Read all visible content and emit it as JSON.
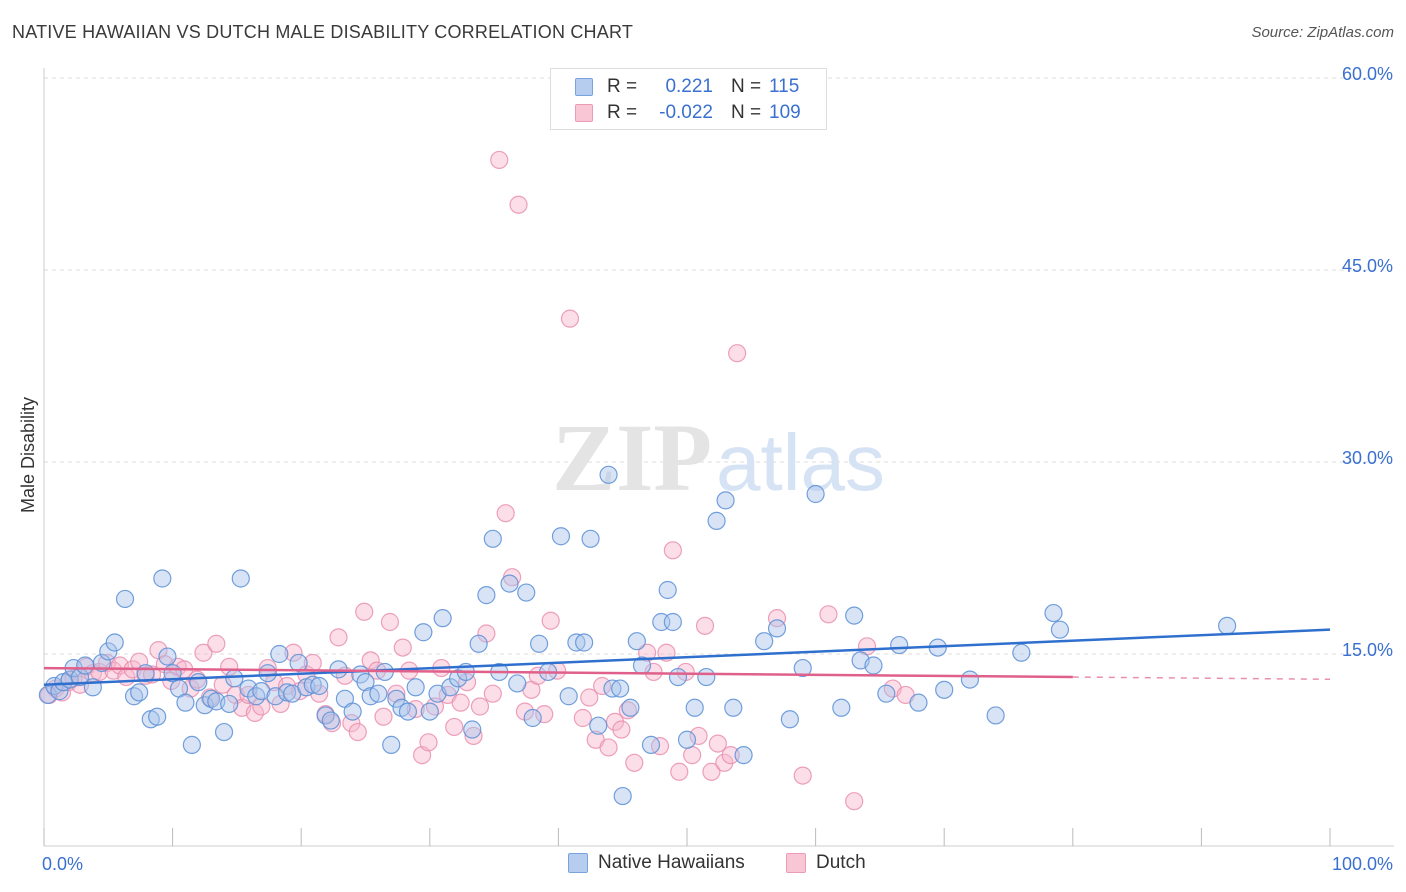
{
  "header": {
    "title": "NATIVE HAWAIIAN VS DUTCH MALE DISABILITY CORRELATION CHART",
    "source": "Source: ZipAtlas.com"
  },
  "legend": {
    "rows": [
      {
        "r_label": "R =",
        "r_value": "0.221",
        "n_label": "N =",
        "n_value": "115"
      },
      {
        "r_label": "R =",
        "r_value": "-0.022",
        "n_label": "N =",
        "n_value": "109"
      }
    ]
  },
  "bottom_legend": {
    "series1": "Native Hawaiians",
    "series2": "Dutch"
  },
  "watermark": {
    "part1": "ZIP",
    "part2": "atlas"
  },
  "colors": {
    "blue_fill": "#a8c4ec",
    "blue_stroke": "#5b8fd6",
    "blue_line": "#2f6fce",
    "pink_fill": "#f6b6cb",
    "pink_stroke": "#e98aac",
    "pink_line": "#e0608c",
    "axis_text": "#3a70d0"
  },
  "chart_data": {
    "type": "scatter",
    "title": "NATIVE HAWAIIAN VS DUTCH MALE DISABILITY CORRELATION CHART",
    "xlabel": "",
    "ylabel": "Male Disability",
    "xlim": [
      0,
      100
    ],
    "ylim": [
      0,
      60
    ],
    "x_tick_labels": [
      "0.0%",
      "100.0%"
    ],
    "y_ticks": [
      15,
      30,
      45,
      60
    ],
    "y_tick_labels": [
      "15.0%",
      "30.0%",
      "45.0%",
      "60.0%"
    ],
    "grid": true,
    "legend_position": "top-center",
    "series": [
      {
        "name": "Native Hawaiians",
        "r": 0.221,
        "n": 115,
        "trend": {
          "x": [
            0,
            100
          ],
          "y": [
            12.6,
            16.9
          ]
        },
        "points": [
          [
            0.3,
            11.8
          ],
          [
            0.8,
            12.5
          ],
          [
            1.2,
            12.1
          ],
          [
            1.5,
            12.8
          ],
          [
            2.0,
            13.0
          ],
          [
            2.3,
            13.9
          ],
          [
            2.8,
            13.2
          ],
          [
            3.2,
            14.1
          ],
          [
            3.8,
            12.4
          ],
          [
            4.5,
            14.3
          ],
          [
            5.0,
            15.2
          ],
          [
            5.5,
            15.9
          ],
          [
            6.3,
            19.3
          ],
          [
            7.0,
            11.7
          ],
          [
            7.4,
            12.0
          ],
          [
            7.9,
            13.5
          ],
          [
            8.3,
            9.9
          ],
          [
            8.8,
            10.1
          ],
          [
            9.2,
            20.9
          ],
          [
            9.6,
            14.8
          ],
          [
            10.0,
            13.5
          ],
          [
            10.5,
            12.3
          ],
          [
            11.0,
            11.2
          ],
          [
            11.5,
            7.9
          ],
          [
            12.0,
            12.8
          ],
          [
            12.5,
            11.0
          ],
          [
            13.0,
            11.5
          ],
          [
            13.4,
            11.3
          ],
          [
            14.0,
            8.9
          ],
          [
            14.4,
            11.1
          ],
          [
            14.8,
            13.1
          ],
          [
            15.3,
            20.9
          ],
          [
            15.9,
            12.3
          ],
          [
            16.5,
            11.7
          ],
          [
            16.9,
            12.1
          ],
          [
            17.4,
            13.5
          ],
          [
            18.0,
            11.7
          ],
          [
            18.3,
            15.0
          ],
          [
            18.9,
            12.0
          ],
          [
            19.3,
            11.9
          ],
          [
            19.8,
            14.3
          ],
          [
            20.4,
            12.4
          ],
          [
            20.9,
            12.6
          ],
          [
            21.4,
            12.5
          ],
          [
            21.9,
            10.2
          ],
          [
            22.3,
            9.8
          ],
          [
            22.9,
            13.8
          ],
          [
            23.4,
            11.5
          ],
          [
            24.0,
            10.5
          ],
          [
            24.6,
            13.4
          ],
          [
            25.0,
            12.8
          ],
          [
            25.4,
            11.7
          ],
          [
            26.0,
            11.9
          ],
          [
            26.5,
            13.6
          ],
          [
            27.0,
            7.9
          ],
          [
            27.4,
            11.5
          ],
          [
            27.8,
            10.8
          ],
          [
            28.3,
            10.5
          ],
          [
            28.9,
            12.4
          ],
          [
            29.5,
            16.7
          ],
          [
            30.0,
            10.5
          ],
          [
            30.6,
            11.9
          ],
          [
            31.0,
            17.8
          ],
          [
            31.6,
            12.4
          ],
          [
            32.2,
            13.1
          ],
          [
            32.8,
            13.6
          ],
          [
            33.3,
            9.1
          ],
          [
            33.8,
            15.8
          ],
          [
            34.4,
            19.6
          ],
          [
            34.9,
            24.0
          ],
          [
            35.4,
            13.6
          ],
          [
            36.2,
            20.5
          ],
          [
            36.8,
            12.7
          ],
          [
            37.5,
            19.8
          ],
          [
            38.0,
            10.0
          ],
          [
            38.5,
            15.8
          ],
          [
            39.2,
            13.6
          ],
          [
            40.2,
            24.2
          ],
          [
            40.8,
            11.7
          ],
          [
            41.4,
            15.9
          ],
          [
            42.0,
            15.9
          ],
          [
            42.5,
            24.0
          ],
          [
            43.1,
            9.4
          ],
          [
            43.9,
            29.0
          ],
          [
            44.2,
            12.3
          ],
          [
            44.8,
            12.3
          ],
          [
            45.0,
            3.9
          ],
          [
            45.6,
            10.8
          ],
          [
            46.1,
            16.0
          ],
          [
            46.5,
            14.1
          ],
          [
            47.2,
            7.9
          ],
          [
            48.0,
            17.5
          ],
          [
            48.5,
            20.0
          ],
          [
            48.9,
            17.5
          ],
          [
            49.3,
            13.2
          ],
          [
            50.0,
            8.3
          ],
          [
            50.6,
            10.8
          ],
          [
            51.5,
            13.2
          ],
          [
            52.3,
            25.4
          ],
          [
            53.0,
            27.0
          ],
          [
            53.6,
            10.8
          ],
          [
            54.4,
            7.1
          ],
          [
            56.0,
            16.0
          ],
          [
            57.0,
            17.0
          ],
          [
            58.0,
            9.9
          ],
          [
            59.0,
            13.9
          ],
          [
            60.0,
            27.5
          ],
          [
            62.0,
            10.8
          ],
          [
            63.0,
            18.0
          ],
          [
            63.5,
            14.5
          ],
          [
            64.5,
            14.1
          ],
          [
            65.5,
            11.9
          ],
          [
            66.5,
            15.7
          ],
          [
            68.0,
            11.2
          ],
          [
            69.5,
            15.5
          ],
          [
            70.0,
            12.2
          ],
          [
            72.0,
            13.0
          ],
          [
            74.0,
            10.2
          ],
          [
            76.0,
            15.1
          ],
          [
            78.5,
            18.2
          ],
          [
            79.0,
            16.9
          ],
          [
            92.0,
            17.2
          ]
        ]
      },
      {
        "name": "Dutch",
        "r": -0.022,
        "n": 109,
        "trend": {
          "x": [
            0,
            80
          ],
          "y": [
            13.9,
            13.2
          ]
        },
        "points": [
          [
            0.4,
            11.8
          ],
          [
            0.9,
            12.3
          ],
          [
            1.4,
            12.0
          ],
          [
            1.9,
            12.8
          ],
          [
            2.3,
            13.1
          ],
          [
            2.8,
            12.6
          ],
          [
            3.3,
            14.0
          ],
          [
            3.8,
            13.5
          ],
          [
            4.3,
            13.6
          ],
          [
            4.9,
            14.3
          ],
          [
            5.4,
            13.7
          ],
          [
            5.9,
            14.1
          ],
          [
            6.4,
            13.2
          ],
          [
            6.9,
            13.8
          ],
          [
            7.4,
            14.4
          ],
          [
            7.9,
            13.3
          ],
          [
            8.4,
            13.4
          ],
          [
            8.9,
            15.3
          ],
          [
            9.4,
            14.2
          ],
          [
            9.9,
            12.9
          ],
          [
            10.4,
            14.0
          ],
          [
            10.9,
            13.8
          ],
          [
            11.4,
            12.3
          ],
          [
            11.9,
            13.0
          ],
          [
            12.4,
            15.1
          ],
          [
            12.9,
            11.6
          ],
          [
            13.4,
            15.8
          ],
          [
            13.9,
            12.6
          ],
          [
            14.4,
            14.0
          ],
          [
            14.9,
            11.8
          ],
          [
            15.4,
            10.8
          ],
          [
            15.9,
            11.8
          ],
          [
            16.4,
            10.4
          ],
          [
            16.9,
            10.9
          ],
          [
            17.4,
            13.9
          ],
          [
            17.9,
            12.8
          ],
          [
            18.4,
            11.1
          ],
          [
            18.9,
            12.5
          ],
          [
            19.4,
            15.1
          ],
          [
            19.9,
            12.1
          ],
          [
            20.4,
            13.4
          ],
          [
            20.9,
            14.3
          ],
          [
            21.4,
            11.9
          ],
          [
            21.9,
            10.3
          ],
          [
            22.4,
            9.6
          ],
          [
            22.9,
            16.3
          ],
          [
            23.4,
            13.3
          ],
          [
            23.9,
            9.6
          ],
          [
            24.4,
            8.9
          ],
          [
            24.9,
            18.3
          ],
          [
            25.4,
            14.5
          ],
          [
            25.9,
            13.7
          ],
          [
            26.4,
            10.1
          ],
          [
            26.9,
            17.5
          ],
          [
            27.4,
            11.9
          ],
          [
            27.9,
            15.5
          ],
          [
            28.4,
            13.7
          ],
          [
            28.9,
            10.7
          ],
          [
            29.4,
            7.1
          ],
          [
            29.9,
            8.1
          ],
          [
            30.4,
            10.9
          ],
          [
            30.9,
            13.9
          ],
          [
            31.4,
            11.8
          ],
          [
            31.9,
            9.3
          ],
          [
            32.4,
            11.2
          ],
          [
            32.9,
            12.8
          ],
          [
            33.4,
            8.6
          ],
          [
            33.9,
            10.9
          ],
          [
            34.4,
            16.6
          ],
          [
            34.9,
            11.9
          ],
          [
            35.4,
            53.6
          ],
          [
            35.9,
            26.0
          ],
          [
            36.4,
            21.0
          ],
          [
            36.9,
            50.1
          ],
          [
            37.4,
            10.5
          ],
          [
            37.9,
            12.2
          ],
          [
            38.4,
            13.3
          ],
          [
            38.9,
            10.3
          ],
          [
            39.4,
            17.6
          ],
          [
            39.9,
            13.7
          ],
          [
            40.9,
            41.2
          ],
          [
            41.9,
            10.0
          ],
          [
            42.4,
            11.6
          ],
          [
            42.9,
            8.3
          ],
          [
            43.4,
            12.5
          ],
          [
            43.9,
            7.7
          ],
          [
            44.4,
            9.7
          ],
          [
            44.9,
            9.1
          ],
          [
            45.4,
            10.6
          ],
          [
            45.9,
            6.5
          ],
          [
            46.9,
            15.1
          ],
          [
            47.4,
            13.6
          ],
          [
            47.9,
            7.8
          ],
          [
            48.4,
            15.1
          ],
          [
            48.9,
            23.1
          ],
          [
            49.4,
            5.8
          ],
          [
            49.9,
            13.6
          ],
          [
            50.4,
            7.1
          ],
          [
            50.9,
            8.6
          ],
          [
            51.4,
            17.2
          ],
          [
            51.9,
            5.8
          ],
          [
            52.4,
            8.0
          ],
          [
            52.9,
            6.5
          ],
          [
            53.4,
            7.1
          ],
          [
            53.9,
            38.5
          ],
          [
            57.0,
            17.8
          ],
          [
            59.0,
            5.5
          ],
          [
            61.0,
            18.1
          ],
          [
            63.0,
            3.5
          ],
          [
            64.0,
            15.6
          ],
          [
            66.0,
            12.3
          ],
          [
            67.0,
            11.8
          ]
        ]
      }
    ]
  }
}
